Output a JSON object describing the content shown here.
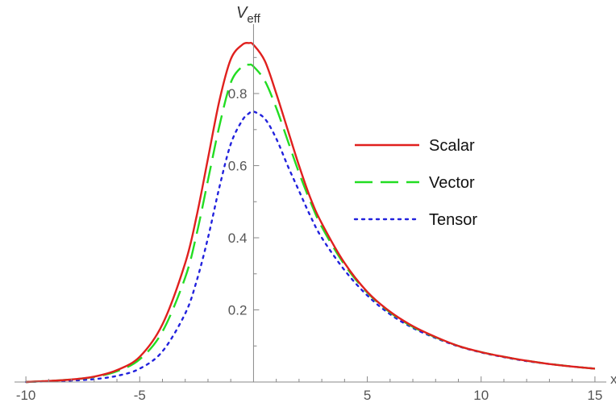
{
  "chart_data": {
    "type": "line",
    "title": "",
    "xlabel": "x",
    "ylabel": {
      "main": "V",
      "sub": "eff"
    },
    "xlim": [
      -10.5,
      15.5
    ],
    "ylim": [
      0,
      0.97
    ],
    "x_ticks": [
      {
        "value": -10,
        "label": "-10"
      },
      {
        "value": -5,
        "label": "-5"
      },
      {
        "value": 5,
        "label": "5"
      },
      {
        "value": 10,
        "label": "10"
      },
      {
        "value": 15,
        "label": "15"
      }
    ],
    "y_ticks": [
      {
        "value": 0.2,
        "label": "0.2"
      },
      {
        "value": 0.4,
        "label": "0.4"
      },
      {
        "value": 0.6,
        "label": "0.6"
      },
      {
        "value": 0.8,
        "label": "0.8"
      }
    ],
    "grid": false,
    "legend_position": "right",
    "series": [
      {
        "name": "Scalar",
        "color": "#e0201e",
        "dash": "solid",
        "x": [
          -10,
          -9,
          -8,
          -7,
          -6,
          -5,
          -4,
          -3,
          -2.5,
          -2,
          -1.5,
          -1,
          -0.5,
          -0.2,
          0,
          0.5,
          1,
          1.5,
          2,
          2.5,
          3,
          4,
          5,
          6,
          7,
          8,
          9,
          10,
          11,
          12,
          13,
          14,
          15
        ],
        "y": [
          0.0,
          0.003,
          0.007,
          0.015,
          0.033,
          0.07,
          0.16,
          0.33,
          0.46,
          0.62,
          0.78,
          0.895,
          0.935,
          0.94,
          0.935,
          0.89,
          0.8,
          0.7,
          0.6,
          0.51,
          0.44,
          0.33,
          0.25,
          0.195,
          0.155,
          0.125,
          0.1,
          0.083,
          0.07,
          0.059,
          0.05,
          0.043,
          0.037
        ]
      },
      {
        "name": "Vector",
        "color": "#22dd22",
        "dash": "dashed",
        "x": [
          -10,
          -9,
          -8,
          -7,
          -6,
          -5,
          -4,
          -3,
          -2.5,
          -2,
          -1.5,
          -1,
          -0.5,
          -0.2,
          0,
          0.5,
          1,
          1.5,
          2,
          2.5,
          3,
          4,
          5,
          6,
          7,
          8,
          9,
          10,
          11,
          12,
          13,
          14,
          15
        ],
        "y": [
          0.0,
          0.003,
          0.007,
          0.014,
          0.03,
          0.063,
          0.14,
          0.29,
          0.41,
          0.56,
          0.71,
          0.83,
          0.875,
          0.88,
          0.875,
          0.835,
          0.76,
          0.67,
          0.58,
          0.5,
          0.43,
          0.325,
          0.248,
          0.193,
          0.153,
          0.124,
          0.1,
          0.083,
          0.07,
          0.059,
          0.05,
          0.043,
          0.037
        ]
      },
      {
        "name": "Tensor",
        "color": "#2222dd",
        "dash": "dotted",
        "x": [
          -10,
          -9,
          -8,
          -7,
          -6,
          -5,
          -4,
          -3,
          -2.5,
          -2,
          -1.5,
          -1,
          -0.5,
          -0.2,
          0,
          0.5,
          1,
          1.5,
          2,
          2.5,
          3,
          4,
          5,
          6,
          7,
          8,
          9,
          10,
          11,
          12,
          13,
          14,
          15
        ],
        "y": [
          0.0,
          0.002,
          0.004,
          0.008,
          0.017,
          0.037,
          0.085,
          0.19,
          0.28,
          0.4,
          0.54,
          0.66,
          0.725,
          0.745,
          0.75,
          0.73,
          0.675,
          0.6,
          0.53,
          0.46,
          0.4,
          0.31,
          0.24,
          0.188,
          0.15,
          0.122,
          0.099,
          0.082,
          0.069,
          0.058,
          0.05,
          0.043,
          0.037
        ]
      }
    ]
  }
}
